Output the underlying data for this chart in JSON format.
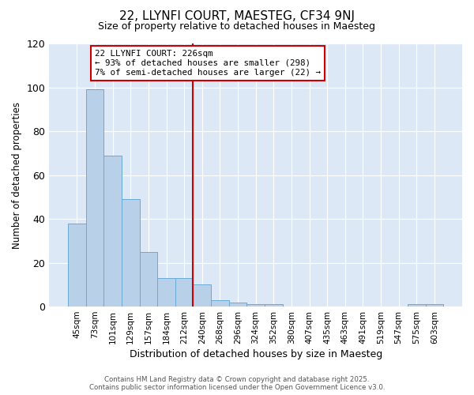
{
  "title": "22, LLYNFI COURT, MAESTEG, CF34 9NJ",
  "subtitle": "Size of property relative to detached houses in Maesteg",
  "xlabel": "Distribution of detached houses by size in Maesteg",
  "ylabel": "Number of detached properties",
  "categories": [
    "45sqm",
    "73sqm",
    "101sqm",
    "129sqm",
    "157sqm",
    "184sqm",
    "212sqm",
    "240sqm",
    "268sqm",
    "296sqm",
    "324sqm",
    "352sqm",
    "380sqm",
    "407sqm",
    "435sqm",
    "463sqm",
    "491sqm",
    "519sqm",
    "547sqm",
    "575sqm",
    "603sqm"
  ],
  "values": [
    38,
    99,
    69,
    49,
    25,
    13,
    13,
    10,
    3,
    2,
    1,
    1,
    0,
    0,
    0,
    0,
    0,
    0,
    0,
    1,
    1
  ],
  "bar_color": "#b8d0e8",
  "bar_edge_color": "#6aaad4",
  "vline_color": "#cc0000",
  "ylim": [
    0,
    120
  ],
  "yticks": [
    0,
    20,
    40,
    60,
    80,
    100,
    120
  ],
  "annotation_line1": "22 LLYNFI COURT: 226sqm",
  "annotation_line2": "← 93% of detached houses are smaller (298)",
  "annotation_line3": "7% of semi-detached houses are larger (22) →",
  "annotation_box_color": "#ffffff",
  "annotation_box_edge": "#cc0000",
  "footer_line1": "Contains HM Land Registry data © Crown copyright and database right 2025.",
  "footer_line2": "Contains public sector information licensed under the Open Government Licence v3.0.",
  "fig_bg_color": "#ffffff",
  "plot_bg_color": "#dce8f5"
}
